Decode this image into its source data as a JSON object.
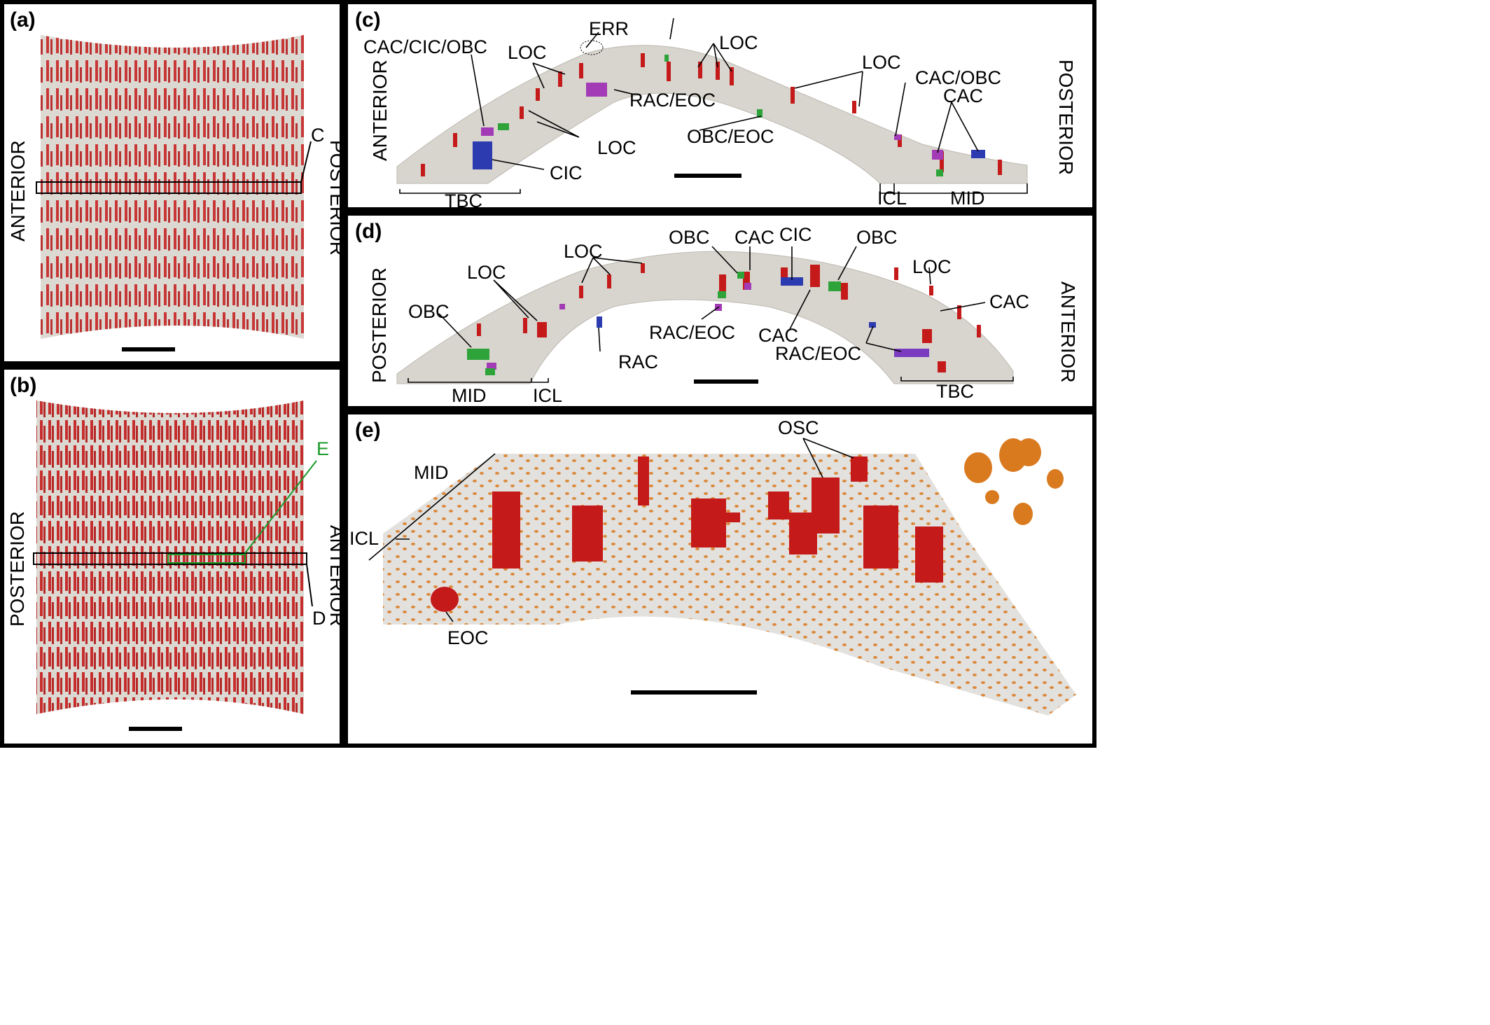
{
  "colors": {
    "vessel": "#c41a1a",
    "tissue": "#d8d5cf",
    "green": "#2ea33a",
    "blue": "#2d3bb0",
    "magenta": "#a23bb5",
    "osteocyte": "#d97a1f",
    "green_label": "#1a9a2a"
  },
  "panel_a": {
    "label": "(a)",
    "left_side": "ANTERIOR",
    "right_side": "POSTERIOR",
    "slice_label": "C"
  },
  "panel_b": {
    "label": "(b)",
    "left_side": "POSTERIOR",
    "right_side": "ANTERIOR",
    "slice_d": "D",
    "slice_e": "E"
  },
  "panel_c": {
    "label": "(c)",
    "left_side": "ANTERIOR",
    "right_side": "POSTERIOR",
    "annotations": {
      "err": "ERR",
      "cac_cic_obc": "CAC/CIC/OBC",
      "loc1": "LOC",
      "loc2": "LOC",
      "loc3": "LOC",
      "loc4": "LOC",
      "rac_eoc": "RAC/EOC",
      "obc_eoc": "OBC/EOC",
      "cac_obc": "CAC/OBC",
      "cac": "CAC",
      "cic": "CIC"
    },
    "regions": {
      "tbc": "TBC",
      "icl": "ICL",
      "mid": "MID"
    }
  },
  "panel_d": {
    "label": "(d)",
    "left_side": "POSTERIOR",
    "right_side": "ANTERIOR",
    "annotations": {
      "obc_top": "OBC",
      "cac_top": "CAC",
      "cic": "CIC",
      "obc_right": "OBC",
      "loc1": "LOC",
      "loc2": "LOC",
      "loc3": "LOC",
      "obc_left": "OBC",
      "rac_eoc1": "RAC/EOC",
      "rac": "RAC",
      "cac_mid": "CAC",
      "rac_eoc2": "RAC/EOC",
      "cac_right": "CAC"
    },
    "regions": {
      "mid": "MID",
      "icl": "ICL",
      "tbc": "TBC"
    }
  },
  "panel_e": {
    "label": "(e)",
    "annotations": {
      "osc": "OSC",
      "mid": "MID",
      "icl": "ICL",
      "eoc": "EOC"
    }
  }
}
